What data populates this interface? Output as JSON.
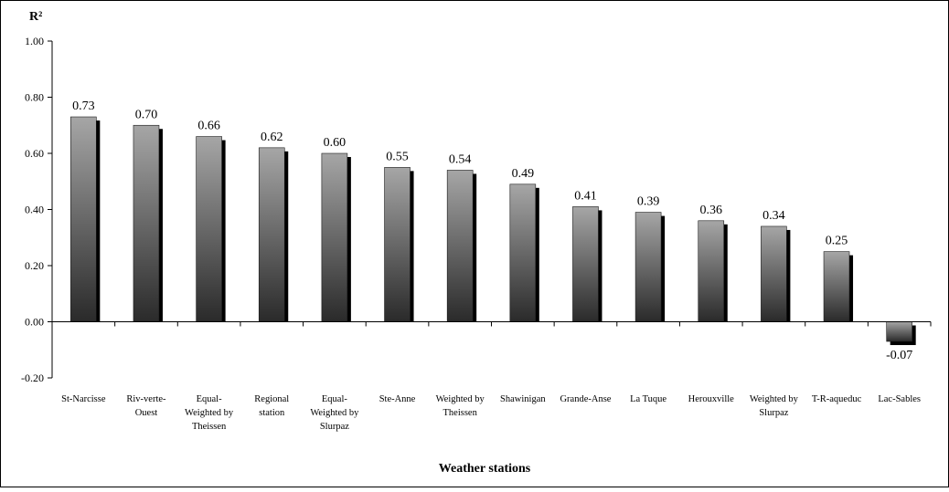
{
  "chart_data": {
    "type": "bar",
    "title": "",
    "ylabel": "R²",
    "xlabel": "Weather stations",
    "ylim": [
      -0.2,
      1.0
    ],
    "yticks": [
      -0.2,
      0.0,
      0.2,
      0.4,
      0.6,
      0.8,
      1.0
    ],
    "ytick_labels": [
      "-0.20",
      "0.00",
      "0.20",
      "0.40",
      "0.60",
      "0.80",
      "1.00"
    ],
    "grid": false,
    "legend": "none",
    "categories": [
      [
        "St-Narcisse"
      ],
      [
        "Riv-verte-",
        "Ouest"
      ],
      [
        "Equal-",
        "Weighted by",
        "Theissen"
      ],
      [
        "Regional",
        "station"
      ],
      [
        "Equal-",
        "Weighted by",
        "Slurpaz"
      ],
      [
        "Ste-Anne"
      ],
      [
        "Weighted by",
        "Theissen"
      ],
      [
        "Shawinigan"
      ],
      [
        "Grande-Anse"
      ],
      [
        "La Tuque"
      ],
      [
        "Herouxville"
      ],
      [
        "Weighted by",
        "Slurpaz"
      ],
      [
        "T-R-aqueduc"
      ],
      [
        "Lac-Sables"
      ]
    ],
    "values": [
      0.73,
      0.7,
      0.66,
      0.62,
      0.6,
      0.55,
      0.54,
      0.49,
      0.41,
      0.39,
      0.36,
      0.34,
      0.25,
      -0.07
    ],
    "data_labels": [
      "0.73",
      "0.70",
      "0.66",
      "0.62",
      "0.60",
      "0.55",
      "0.54",
      "0.49",
      "0.41",
      "0.39",
      "0.36",
      "0.34",
      "0.25",
      "-0.07"
    ],
    "colors": {
      "bar_light": "#a6a6a6",
      "bar_dark": "#2a2a2a",
      "bar_shadow": "#000000",
      "axis": "#000000"
    }
  }
}
